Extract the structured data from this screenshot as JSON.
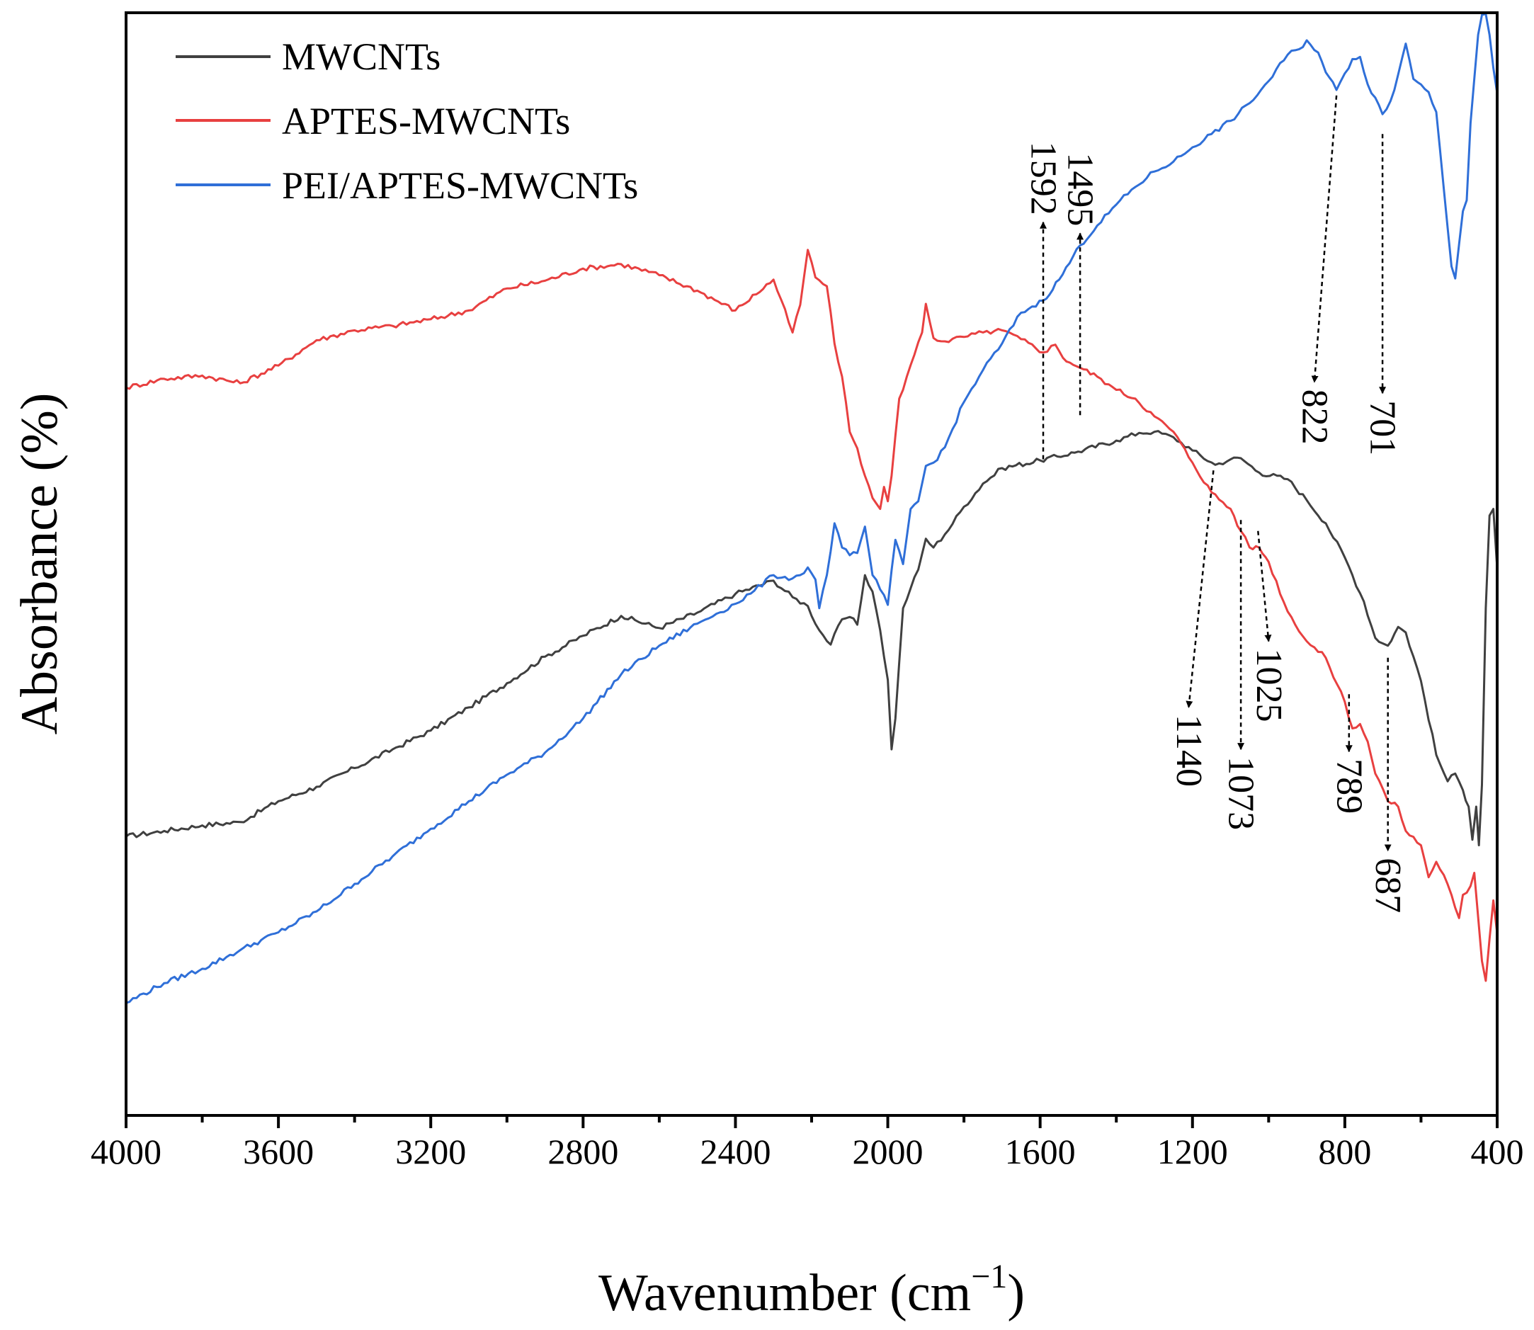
{
  "chart_data": {
    "type": "line",
    "title": "",
    "xlabel": "Wavenumber (cm",
    "xlabel_sup": "−1",
    "xlabel_close": ")",
    "ylabel": "Absorbance (%)",
    "xlim": [
      4000,
      400
    ],
    "ylim": [
      0,
      100
    ],
    "x_ticks": [
      4000,
      3600,
      3200,
      2800,
      2400,
      2000,
      1600,
      1200,
      800,
      400
    ],
    "x_tick_labels": [
      "4000",
      "3600",
      "3200",
      "2800",
      "2400",
      "2000",
      "1600",
      "1200",
      "800",
      "400"
    ],
    "y_tick_labels_shown": false,
    "grid": false,
    "legend_position": "top-left",
    "series": [
      {
        "name": "MWCNTs",
        "color": "#404040",
        "points": [
          [
            4000,
            25.3
          ],
          [
            3900,
            25.8
          ],
          [
            3800,
            26.3
          ],
          [
            3700,
            26.6
          ],
          [
            3600,
            28.5
          ],
          [
            3500,
            29.8
          ],
          [
            3400,
            31.5
          ],
          [
            3300,
            33.2
          ],
          [
            3200,
            34.9
          ],
          [
            3100,
            37.0
          ],
          [
            3000,
            39.2
          ],
          [
            2900,
            41.6
          ],
          [
            2800,
            43.5
          ],
          [
            2700,
            45.3
          ],
          [
            2600,
            44.2
          ],
          [
            2500,
            45.6
          ],
          [
            2400,
            47.3
          ],
          [
            2300,
            48.5
          ],
          [
            2250,
            47.0
          ],
          [
            2210,
            46.2
          ],
          [
            2180,
            44.0
          ],
          [
            2150,
            42.7
          ],
          [
            2120,
            45.0
          ],
          [
            2100,
            45.2
          ],
          [
            2080,
            44.5
          ],
          [
            2060,
            49.0
          ],
          [
            2040,
            47.5
          ],
          [
            2020,
            44.0
          ],
          [
            2000,
            39.5
          ],
          [
            1990,
            33.2
          ],
          [
            1980,
            36.0
          ],
          [
            1960,
            46.0
          ],
          [
            1940,
            47.8
          ],
          [
            1920,
            49.5
          ],
          [
            1900,
            52.3
          ],
          [
            1880,
            51.5
          ],
          [
            1850,
            52.7
          ],
          [
            1800,
            55.2
          ],
          [
            1750,
            57.3
          ],
          [
            1700,
            58.7
          ],
          [
            1600,
            59.4
          ],
          [
            1500,
            60.2
          ],
          [
            1400,
            61.2
          ],
          [
            1340,
            61.9
          ],
          [
            1300,
            62.0
          ],
          [
            1250,
            61.5
          ],
          [
            1200,
            60.3
          ],
          [
            1140,
            59.0
          ],
          [
            1100,
            59.5
          ],
          [
            1073,
            59.6
          ],
          [
            1025,
            58.3
          ],
          [
            950,
            57.7
          ],
          [
            900,
            55.8
          ],
          [
            850,
            53.7
          ],
          [
            800,
            50.6
          ],
          [
            750,
            46.6
          ],
          [
            720,
            43.3
          ],
          [
            700,
            42.8
          ],
          [
            687,
            42.6
          ],
          [
            660,
            44.3
          ],
          [
            640,
            43.8
          ],
          [
            600,
            39.4
          ],
          [
            560,
            32.7
          ],
          [
            530,
            30.3
          ],
          [
            510,
            31.0
          ],
          [
            490,
            29.5
          ],
          [
            475,
            28.0
          ],
          [
            465,
            25.0
          ],
          [
            455,
            28.0
          ],
          [
            448,
            24.5
          ],
          [
            440,
            30.0
          ],
          [
            430,
            46.0
          ],
          [
            420,
            54.4
          ],
          [
            410,
            55.0
          ],
          [
            400,
            49.6
          ]
        ]
      },
      {
        "name": "APTES-MWCNTs",
        "color": "#e84040",
        "points": [
          [
            4000,
            66.0
          ],
          [
            3900,
            66.8
          ],
          [
            3800,
            67.1
          ],
          [
            3700,
            66.4
          ],
          [
            3600,
            68.0
          ],
          [
            3500,
            70.3
          ],
          [
            3400,
            71.2
          ],
          [
            3300,
            71.6
          ],
          [
            3200,
            72.2
          ],
          [
            3100,
            73.0
          ],
          [
            3000,
            75.0
          ],
          [
            2900,
            75.7
          ],
          [
            2800,
            76.8
          ],
          [
            2700,
            77.2
          ],
          [
            2600,
            76.2
          ],
          [
            2500,
            74.8
          ],
          [
            2400,
            73.0
          ],
          [
            2300,
            75.8
          ],
          [
            2250,
            71.0
          ],
          [
            2230,
            73.5
          ],
          [
            2210,
            78.5
          ],
          [
            2190,
            76.0
          ],
          [
            2160,
            75.2
          ],
          [
            2140,
            70.0
          ],
          [
            2120,
            67.0
          ],
          [
            2100,
            62.0
          ],
          [
            2080,
            60.5
          ],
          [
            2060,
            58.0
          ],
          [
            2040,
            56.0
          ],
          [
            2020,
            55.0
          ],
          [
            2010,
            57.0
          ],
          [
            2000,
            55.7
          ],
          [
            1990,
            58.0
          ],
          [
            1970,
            65.0
          ],
          [
            1950,
            67.0
          ],
          [
            1930,
            69.0
          ],
          [
            1910,
            71.0
          ],
          [
            1900,
            73.6
          ],
          [
            1880,
            70.5
          ],
          [
            1850,
            70.2
          ],
          [
            1800,
            70.6
          ],
          [
            1750,
            71.0
          ],
          [
            1700,
            71.2
          ],
          [
            1650,
            70.4
          ],
          [
            1592,
            69.2
          ],
          [
            1560,
            69.9
          ],
          [
            1540,
            68.7
          ],
          [
            1495,
            67.8
          ],
          [
            1450,
            67.0
          ],
          [
            1420,
            66.3
          ],
          [
            1400,
            65.8
          ],
          [
            1350,
            65.0
          ],
          [
            1300,
            63.4
          ],
          [
            1250,
            62.0
          ],
          [
            1200,
            59.2
          ],
          [
            1150,
            56.5
          ],
          [
            1100,
            55.0
          ],
          [
            1073,
            53.0
          ],
          [
            1050,
            51.5
          ],
          [
            1025,
            51.5
          ],
          [
            1000,
            50.2
          ],
          [
            950,
            45.7
          ],
          [
            900,
            43.0
          ],
          [
            850,
            41.5
          ],
          [
            800,
            37.5
          ],
          [
            780,
            35.1
          ],
          [
            760,
            35.5
          ],
          [
            740,
            33.9
          ],
          [
            720,
            31.0
          ],
          [
            700,
            29.6
          ],
          [
            687,
            28.5
          ],
          [
            660,
            28.0
          ],
          [
            640,
            25.8
          ],
          [
            600,
            24.5
          ],
          [
            580,
            21.6
          ],
          [
            560,
            23.0
          ],
          [
            540,
            21.8
          ],
          [
            520,
            20.0
          ],
          [
            500,
            17.9
          ],
          [
            490,
            20.0
          ],
          [
            480,
            20.2
          ],
          [
            470,
            20.8
          ],
          [
            460,
            22.0
          ],
          [
            450,
            18.0
          ],
          [
            440,
            14.0
          ],
          [
            430,
            12.2
          ],
          [
            420,
            16.0
          ],
          [
            410,
            19.5
          ],
          [
            400,
            16.5
          ]
        ]
      },
      {
        "name": "PEI/APTES-MWCNTs",
        "color": "#2f6fd8",
        "points": [
          [
            4000,
            10.2
          ],
          [
            3900,
            12.0
          ],
          [
            3800,
            13.3
          ],
          [
            3700,
            15.0
          ],
          [
            3600,
            16.6
          ],
          [
            3500,
            18.5
          ],
          [
            3400,
            21.0
          ],
          [
            3300,
            23.5
          ],
          [
            3200,
            26.0
          ],
          [
            3100,
            28.5
          ],
          [
            3000,
            30.9
          ],
          [
            2900,
            32.9
          ],
          [
            2800,
            36.0
          ],
          [
            2700,
            40.0
          ],
          [
            2600,
            42.6
          ],
          [
            2500,
            44.6
          ],
          [
            2450,
            45.5
          ],
          [
            2400,
            46.4
          ],
          [
            2350,
            47.6
          ],
          [
            2300,
            49.0
          ],
          [
            2250,
            48.7
          ],
          [
            2230,
            49.0
          ],
          [
            2210,
            49.7
          ],
          [
            2190,
            48.6
          ],
          [
            2180,
            46.0
          ],
          [
            2160,
            49.0
          ],
          [
            2140,
            53.7
          ],
          [
            2120,
            51.5
          ],
          [
            2100,
            50.8
          ],
          [
            2080,
            51.0
          ],
          [
            2060,
            53.4
          ],
          [
            2040,
            49.0
          ],
          [
            2020,
            47.7
          ],
          [
            2000,
            46.3
          ],
          [
            1980,
            52.2
          ],
          [
            1960,
            50.0
          ],
          [
            1940,
            55.0
          ],
          [
            1920,
            55.7
          ],
          [
            1900,
            58.9
          ],
          [
            1880,
            59.2
          ],
          [
            1850,
            60.6
          ],
          [
            1800,
            64.7
          ],
          [
            1750,
            67.6
          ],
          [
            1700,
            70.0
          ],
          [
            1650,
            72.8
          ],
          [
            1592,
            73.9
          ],
          [
            1550,
            75.8
          ],
          [
            1495,
            78.9
          ],
          [
            1450,
            80.7
          ],
          [
            1400,
            82.6
          ],
          [
            1350,
            84.2
          ],
          [
            1300,
            85.6
          ],
          [
            1250,
            86.5
          ],
          [
            1200,
            87.8
          ],
          [
            1150,
            89.0
          ],
          [
            1100,
            90.2
          ],
          [
            1050,
            91.8
          ],
          [
            1000,
            93.8
          ],
          [
            950,
            96.2
          ],
          [
            920,
            96.7
          ],
          [
            900,
            97.5
          ],
          [
            870,
            96.4
          ],
          [
            850,
            94.6
          ],
          [
            822,
            93.0
          ],
          [
            800,
            94.5
          ],
          [
            780,
            95.8
          ],
          [
            760,
            96.0
          ],
          [
            740,
            93.5
          ],
          [
            720,
            92.3
          ],
          [
            701,
            90.8
          ],
          [
            680,
            92.0
          ],
          [
            660,
            94.4
          ],
          [
            640,
            97.2
          ],
          [
            620,
            94.0
          ],
          [
            600,
            93.5
          ],
          [
            580,
            92.8
          ],
          [
            560,
            91.0
          ],
          [
            540,
            84.0
          ],
          [
            520,
            77.0
          ],
          [
            510,
            75.9
          ],
          [
            500,
            79.0
          ],
          [
            490,
            82.0
          ],
          [
            480,
            83.0
          ],
          [
            470,
            90.0
          ],
          [
            460,
            94.0
          ],
          [
            450,
            98.0
          ],
          [
            440,
            99.8
          ],
          [
            430,
            99.9
          ],
          [
            420,
            98.0
          ],
          [
            410,
            95.0
          ],
          [
            400,
            92.7
          ]
        ]
      }
    ],
    "annotations": [
      {
        "label": "1592",
        "x": 1592,
        "y_start": 59.5,
        "y_end": 81.0,
        "arrow": "up",
        "series": "PEI/APTES-MWCNTs",
        "label_rotation": 90
      },
      {
        "label": "1495",
        "x": 1495,
        "y_start": 63.5,
        "y_end": 80.0,
        "arrow": "up",
        "series": "APTES-MWCNTs",
        "label_rotation": 90
      },
      {
        "label": "822",
        "x1": 822,
        "y1": 92.5,
        "x2": 880,
        "y2": 66.5,
        "arrow": "down",
        "series": "PEI/APTES-MWCNTs",
        "label_rotation": 90
      },
      {
        "label": "701",
        "x": 701,
        "y_start": 89.0,
        "y_end": 65.5,
        "arrow": "down",
        "series": "PEI/APTES-MWCNTs",
        "label_rotation": 90
      },
      {
        "label": "1140",
        "x1": 1145,
        "y1": 58.5,
        "x2": 1210,
        "y2": 37.0,
        "arrow": "down",
        "series": "MWCNTs",
        "label_rotation": 90
      },
      {
        "label": "1073",
        "x": 1073,
        "y_start": 54.0,
        "y_end": 33.2,
        "arrow": "down",
        "series": "APTES-MWCNTs",
        "label_rotation": 90
      },
      {
        "label": "1025",
        "x1": 1028,
        "y1": 53.0,
        "x2": 1000,
        "y2": 43.0,
        "arrow": "down",
        "series": "APTES-MWCNTs",
        "label_rotation": 90
      },
      {
        "label": "789",
        "x": 789,
        "y_start": 38.2,
        "y_end": 33.0,
        "arrow": "down",
        "series": "MWCNTs",
        "label_rotation": 90
      },
      {
        "label": "687",
        "x": 687,
        "y_start": 41.5,
        "y_end": 24.0,
        "arrow": "down",
        "series": "MWCNTs",
        "label_rotation": 90
      }
    ]
  }
}
